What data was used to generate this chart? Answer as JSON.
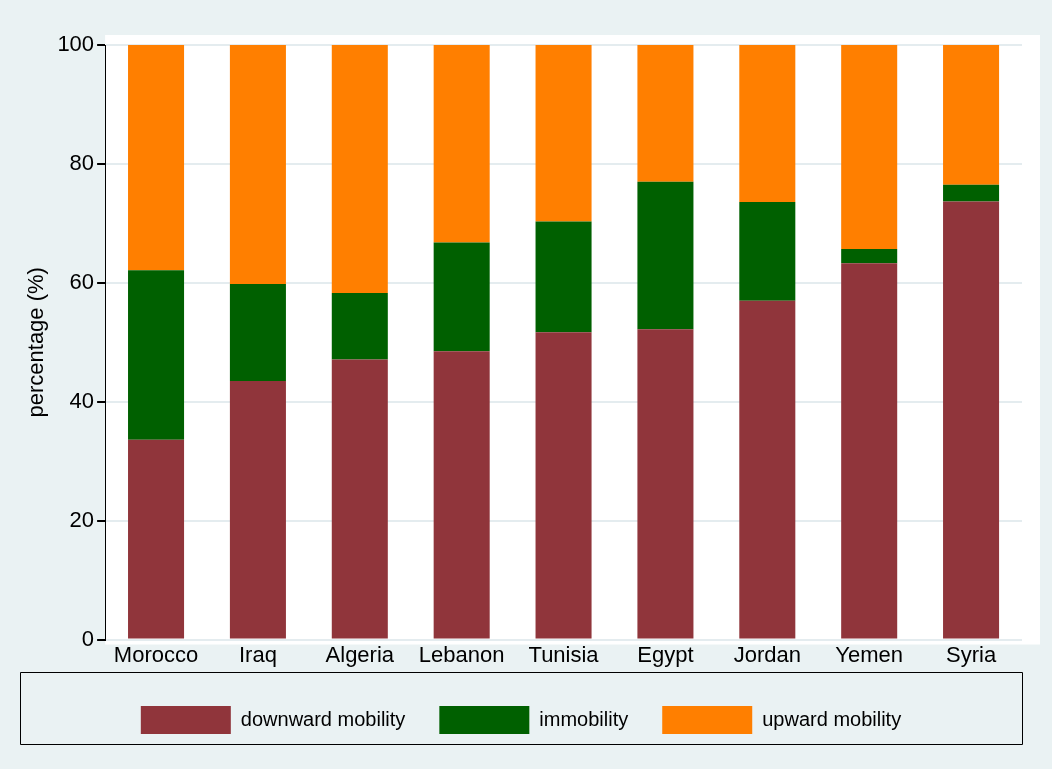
{
  "chart_data": {
    "type": "bar",
    "stacked": true,
    "ylabel": "percentage (%)",
    "categories": [
      "Morocco",
      "Iraq",
      "Algeria",
      "Lebanon",
      "Tunisia",
      "Egypt",
      "Jordan",
      "Yemen",
      "Syria"
    ],
    "series": [
      {
        "name": "downward mobility",
        "color": "#90353b",
        "values": [
          33.6,
          43.5,
          47.1,
          48.5,
          51.7,
          52.2,
          57.0,
          63.3,
          73.7
        ]
      },
      {
        "name": "immobility",
        "color": "#006000",
        "values": [
          28.5,
          16.3,
          11.2,
          18.3,
          18.6,
          24.8,
          16.6,
          2.4,
          2.8
        ]
      },
      {
        "name": "upward mobility",
        "color": "#ff7f00",
        "values": [
          37.9,
          40.2,
          41.7,
          33.2,
          29.7,
          23.0,
          26.4,
          34.3,
          23.5
        ]
      }
    ],
    "ylim": [
      0,
      100
    ],
    "yticks": [
      0,
      20,
      40,
      60,
      80,
      100
    ],
    "grid": "y",
    "legend": "bottom"
  }
}
